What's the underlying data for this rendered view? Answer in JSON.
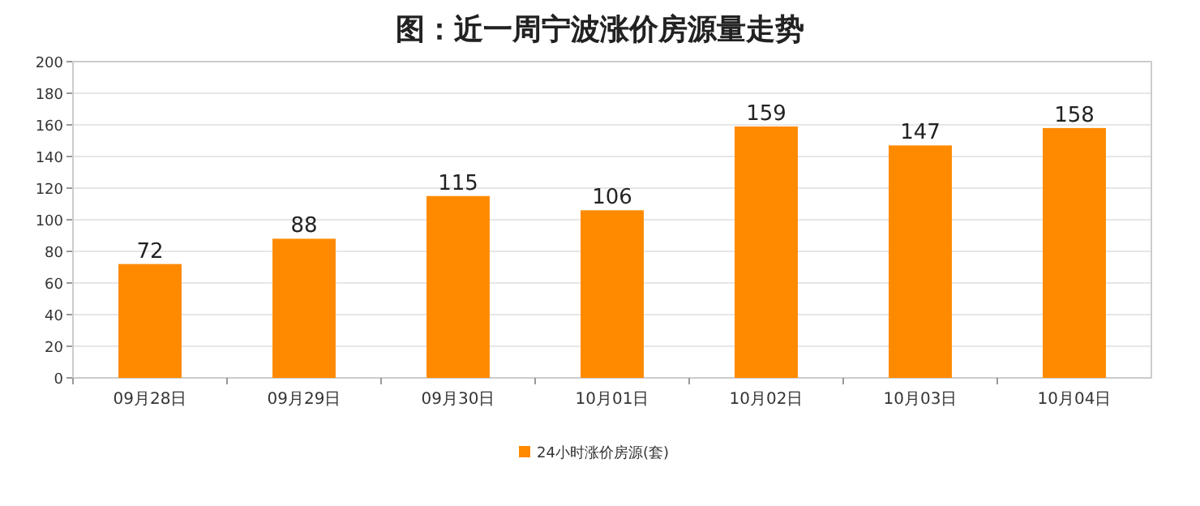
{
  "chart_data": {
    "type": "bar",
    "title": "图：近一周宁波涨价房源量走势",
    "categories": [
      "09月28日",
      "09月29日",
      "09月30日",
      "10月01日",
      "10月02日",
      "10月03日",
      "10月04日"
    ],
    "series": [
      {
        "name": "24小时涨价房源(套)",
        "color": "#ff8a00",
        "values": [
          72,
          88,
          115,
          106,
          159,
          147,
          158
        ]
      }
    ],
    "ylim": [
      0,
      200
    ],
    "yticks": [
      0,
      20,
      40,
      60,
      80,
      100,
      120,
      140,
      160,
      180,
      200
    ],
    "grid": "y",
    "legend": "bottom",
    "data_labels": true
  }
}
